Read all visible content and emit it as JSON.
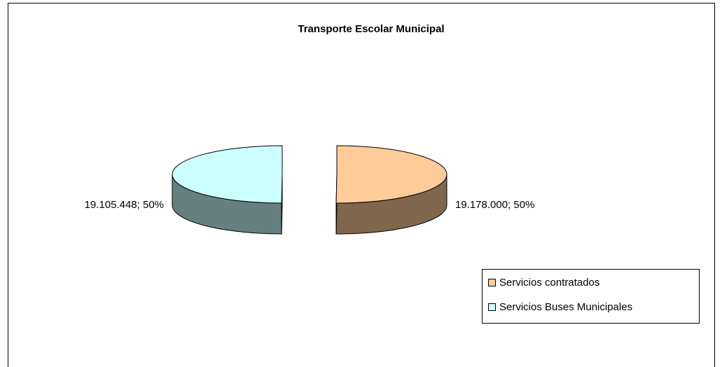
{
  "chart_data": {
    "type": "pie",
    "style": "3d-exploded",
    "title": "Transporte Escolar Municipal",
    "categories": [
      "Servicios contratados",
      "Servicios Buses Municipales"
    ],
    "values": [
      19178000,
      19105448
    ],
    "value_labels": [
      "19.178.000; 50%",
      "19.105.448; 50%"
    ],
    "colors": [
      "#FFCC99",
      "#CCFFFF"
    ],
    "legend": "right"
  }
}
